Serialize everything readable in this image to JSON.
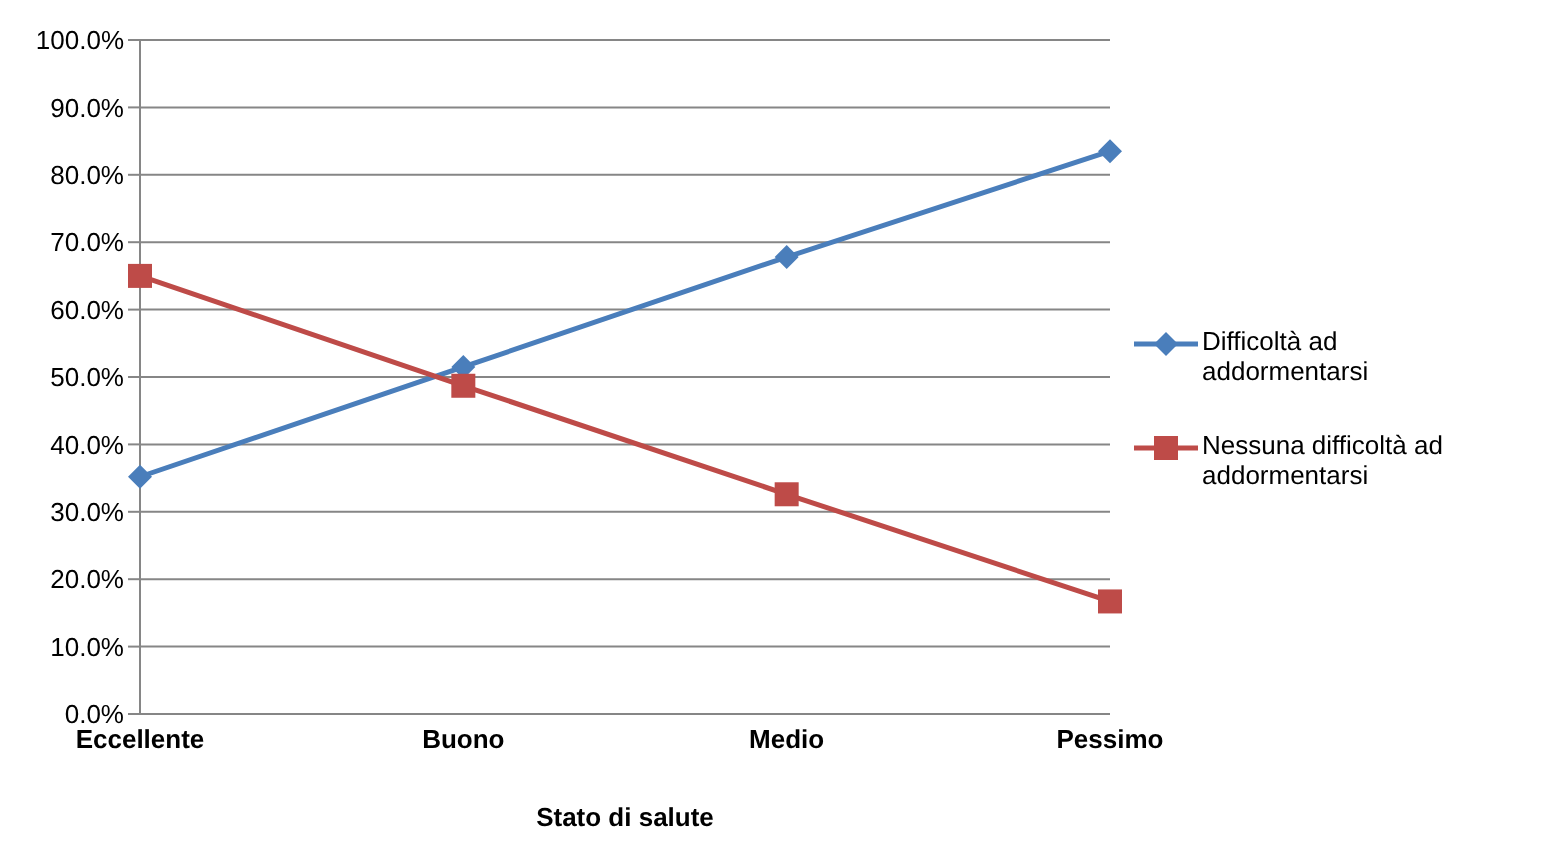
{
  "chart_data": {
    "type": "line",
    "xlabel": "Stato di salute",
    "categories": [
      "Eccellente",
      "Buono",
      "Medio",
      "Pessimo"
    ],
    "series": [
      {
        "name": "Difficoltà ad addormentarsi",
        "color": "#4a7ebb",
        "marker": "diamond",
        "values": [
          35.2,
          51.5,
          67.8,
          83.5
        ]
      },
      {
        "name": "Nessuna difficoltà ad addormentarsi",
        "color": "#be4b48",
        "marker": "square",
        "values": [
          65.0,
          48.7,
          32.6,
          16.7
        ]
      }
    ],
    "ylim": [
      0,
      100
    ],
    "yticks": [
      {
        "value": 0,
        "label": "0.0%"
      },
      {
        "value": 10,
        "label": "10.0%"
      },
      {
        "value": 20,
        "label": "20.0%"
      },
      {
        "value": 30,
        "label": "30.0%"
      },
      {
        "value": 40,
        "label": "40.0%"
      },
      {
        "value": 50,
        "label": "50.0%"
      },
      {
        "value": 60,
        "label": "60.0%"
      },
      {
        "value": 70,
        "label": "70.0%"
      },
      {
        "value": 80,
        "label": "80.0%"
      },
      {
        "value": 90,
        "label": "90.0%"
      },
      {
        "value": 100,
        "label": "100.0%"
      }
    ],
    "grid": "y",
    "legend": "right",
    "line_style": "solid"
  }
}
